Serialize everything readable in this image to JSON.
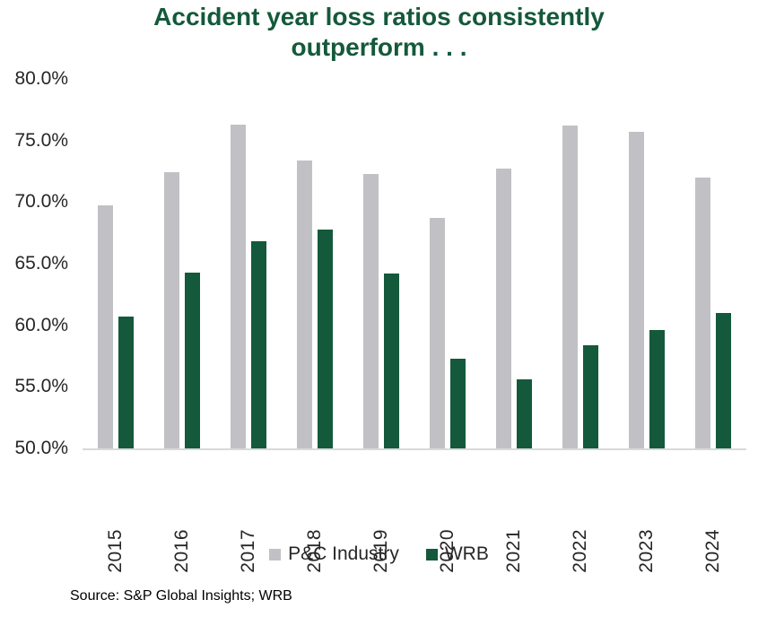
{
  "title": {
    "line1": "Accident year loss ratios consistently",
    "line2": "outperform . . ."
  },
  "colors": {
    "industry": "#c1c1c5",
    "wrb": "#14593b",
    "title": "#14593b",
    "axis_text": "#262626",
    "baseline": "#d9d9d9"
  },
  "legend": [
    {
      "label": "P&C Industry",
      "color": "#c1c1c5"
    },
    {
      "label": "WRB",
      "color": "#14593b"
    }
  ],
  "source": "Source: S&P Global Insights; WRB",
  "chart_data": {
    "type": "bar",
    "title": "Accident year loss ratios consistently outperform . . .",
    "categories": [
      "2015",
      "2016",
      "2017",
      "2018",
      "2019",
      "2020",
      "2021",
      "2022",
      "2023",
      "2024"
    ],
    "series": [
      {
        "name": "P&C Industry",
        "color": "#c1c1c5",
        "values": [
          69.7,
          72.4,
          76.3,
          73.4,
          72.3,
          68.7,
          72.7,
          76.2,
          75.7,
          72.0
        ]
      },
      {
        "name": "WRB",
        "color": "#14593b",
        "values": [
          60.7,
          64.3,
          66.8,
          67.8,
          64.2,
          57.3,
          55.6,
          58.4,
          59.6,
          61.0
        ]
      }
    ],
    "xlabel": "",
    "ylabel": "",
    "ylim": [
      50,
      80
    ],
    "ytick_step": 5,
    "ytick_labels": [
      "80.0%",
      "75.0%",
      "70.0%",
      "65.0%",
      "60.0%",
      "55.0%",
      "50.0%"
    ],
    "grid": false,
    "legend_position": "bottom"
  }
}
